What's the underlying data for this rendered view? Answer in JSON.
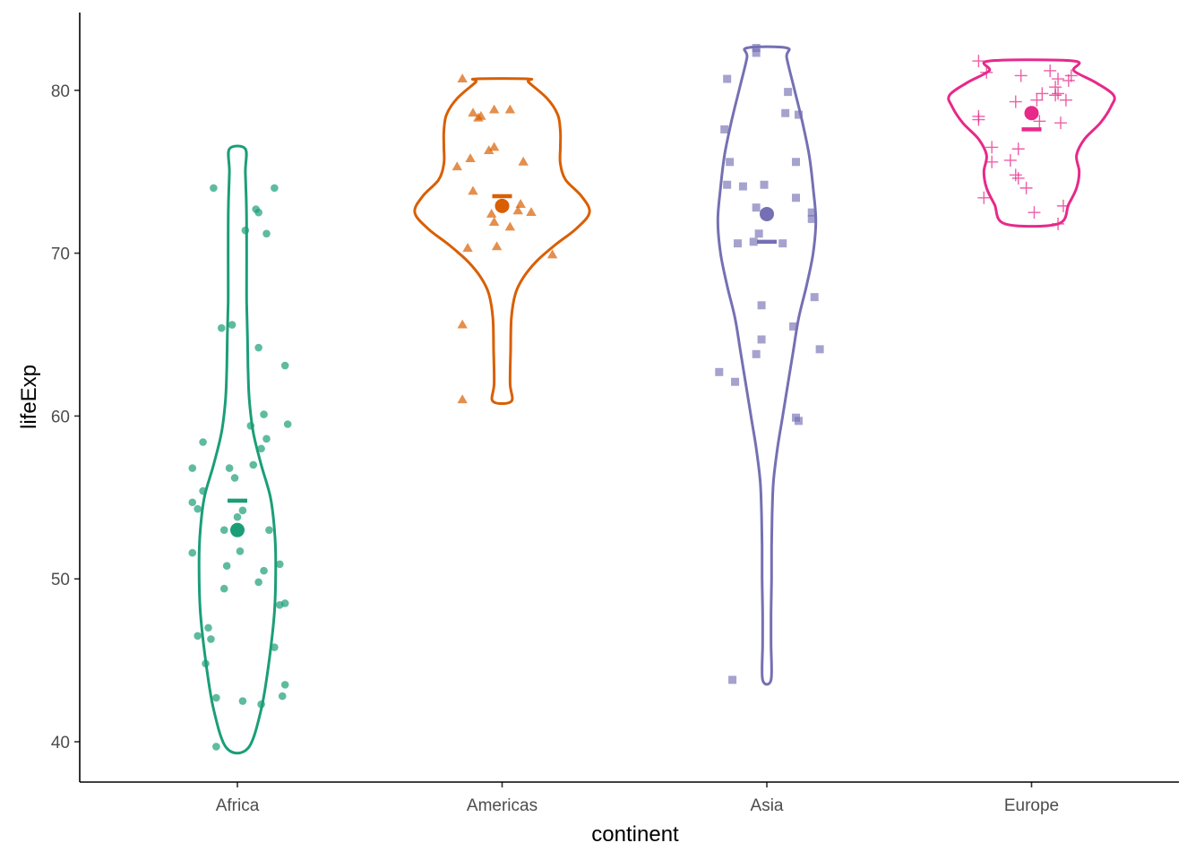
{
  "chart_data": {
    "type": "violin",
    "xlabel": "continent",
    "ylabel": "lifeExp",
    "ylim": [
      37.5,
      84.2
    ],
    "y_ticks": [
      40,
      50,
      60,
      70,
      80
    ],
    "grid": false,
    "legend": "none",
    "groups": [
      {
        "name": "Africa",
        "color": "#1b9e77",
        "shape": "circle",
        "mean": 53.0,
        "median": 54.8,
        "violin": [
          [
            39.6,
            0.04
          ],
          [
            42,
            0.09
          ],
          [
            45,
            0.12
          ],
          [
            48,
            0.14
          ],
          [
            51,
            0.145
          ],
          [
            53,
            0.14
          ],
          [
            55,
            0.125
          ],
          [
            57,
            0.09
          ],
          [
            59,
            0.06
          ],
          [
            61,
            0.045
          ],
          [
            63,
            0.04
          ],
          [
            65,
            0.038
          ],
          [
            67,
            0.035
          ],
          [
            69,
            0.035
          ],
          [
            71,
            0.035
          ],
          [
            73,
            0.034
          ],
          [
            75,
            0.03
          ],
          [
            76.4,
            0.03
          ]
        ],
        "points": [
          [
            -0.08,
            39.7
          ],
          [
            0.09,
            42.3
          ],
          [
            0.02,
            42.5
          ],
          [
            0.17,
            42.8
          ],
          [
            -0.08,
            42.7
          ],
          [
            0.14,
            45.8
          ],
          [
            0.18,
            43.5
          ],
          [
            0.16,
            48.4
          ],
          [
            0.18,
            48.5
          ],
          [
            -0.12,
            44.8
          ],
          [
            -0.15,
            46.5
          ],
          [
            -0.1,
            46.3
          ],
          [
            -0.11,
            47.0
          ],
          [
            0.08,
            49.8
          ],
          [
            0.1,
            50.5
          ],
          [
            0.16,
            50.9
          ],
          [
            -0.05,
            49.4
          ],
          [
            -0.04,
            50.8
          ],
          [
            0.01,
            51.7
          ],
          [
            -0.17,
            51.6
          ],
          [
            0.12,
            53.0
          ],
          [
            -0.05,
            53.0
          ],
          [
            0.0,
            53.8
          ],
          [
            0.02,
            54.2
          ],
          [
            -0.15,
            54.3
          ],
          [
            -0.17,
            54.7
          ],
          [
            -0.13,
            55.4
          ],
          [
            -0.01,
            56.2
          ],
          [
            0.06,
            57.0
          ],
          [
            -0.03,
            56.8
          ],
          [
            -0.17,
            56.8
          ],
          [
            0.09,
            58.0
          ],
          [
            0.11,
            58.6
          ],
          [
            -0.13,
            58.4
          ],
          [
            0.05,
            59.4
          ],
          [
            0.19,
            59.5
          ],
          [
            0.1,
            60.1
          ],
          [
            0.18,
            63.1
          ],
          [
            0.08,
            64.2
          ],
          [
            -0.06,
            65.4
          ],
          [
            -0.02,
            65.6
          ],
          [
            0.03,
            71.4
          ],
          [
            0.11,
            71.2
          ],
          [
            0.08,
            72.5
          ],
          [
            0.07,
            72.7
          ],
          [
            -0.09,
            74.0
          ],
          [
            0.14,
            74.0
          ]
        ]
      },
      {
        "name": "Americas",
        "color": "#d95f02",
        "shape": "triangle",
        "mean": 72.9,
        "median": 73.5,
        "violin": [
          [
            60.9,
            0.035
          ],
          [
            62,
            0.03
          ],
          [
            64,
            0.032
          ],
          [
            66,
            0.035
          ],
          [
            67.5,
            0.05
          ],
          [
            68.5,
            0.08
          ],
          [
            69.5,
            0.13
          ],
          [
            70.5,
            0.2
          ],
          [
            71.5,
            0.28
          ],
          [
            72.5,
            0.33
          ],
          [
            73.5,
            0.3
          ],
          [
            74.5,
            0.24
          ],
          [
            75.5,
            0.22
          ],
          [
            76.5,
            0.22
          ],
          [
            77.5,
            0.22
          ],
          [
            78.5,
            0.21
          ],
          [
            79.5,
            0.17
          ],
          [
            80.5,
            0.1
          ],
          [
            80.7,
            0.1
          ]
        ],
        "points": [
          [
            -0.15,
            61.0
          ],
          [
            -0.15,
            65.6
          ],
          [
            0.19,
            69.9
          ],
          [
            -0.13,
            70.3
          ],
          [
            -0.02,
            70.4
          ],
          [
            0.03,
            71.6
          ],
          [
            -0.03,
            71.9
          ],
          [
            0.06,
            72.6
          ],
          [
            -0.04,
            72.4
          ],
          [
            0.11,
            72.5
          ],
          [
            0.07,
            73.0
          ],
          [
            -0.11,
            73.8
          ],
          [
            0.08,
            75.6
          ],
          [
            -0.17,
            75.3
          ],
          [
            -0.12,
            75.8
          ],
          [
            -0.05,
            76.3
          ],
          [
            -0.03,
            76.5
          ],
          [
            -0.08,
            78.4
          ],
          [
            -0.09,
            78.3
          ],
          [
            -0.11,
            78.6
          ],
          [
            -0.03,
            78.8
          ],
          [
            0.03,
            78.8
          ],
          [
            -0.15,
            80.7
          ]
        ]
      },
      {
        "name": "Asia",
        "color": "#7570b3",
        "shape": "square",
        "mean": 72.4,
        "median": 70.7,
        "violin": [
          [
            43.8,
            0.016
          ],
          [
            46,
            0.016
          ],
          [
            48,
            0.016
          ],
          [
            50,
            0.018
          ],
          [
            52,
            0.018
          ],
          [
            54,
            0.02
          ],
          [
            56,
            0.025
          ],
          [
            58,
            0.04
          ],
          [
            60,
            0.06
          ],
          [
            62,
            0.08
          ],
          [
            64,
            0.1
          ],
          [
            66,
            0.12
          ],
          [
            68,
            0.15
          ],
          [
            70,
            0.175
          ],
          [
            72,
            0.185
          ],
          [
            74,
            0.175
          ],
          [
            76,
            0.16
          ],
          [
            78,
            0.135
          ],
          [
            80,
            0.105
          ],
          [
            82,
            0.075
          ],
          [
            82.6,
            0.075
          ]
        ],
        "points": [
          [
            -0.13,
            43.8
          ],
          [
            -0.12,
            62.1
          ],
          [
            -0.18,
            62.7
          ],
          [
            -0.04,
            63.8
          ],
          [
            -0.02,
            64.7
          ],
          [
            0.12,
            59.7
          ],
          [
            0.11,
            59.9
          ],
          [
            0.2,
            64.1
          ],
          [
            0.1,
            65.5
          ],
          [
            0.18,
            67.3
          ],
          [
            -0.02,
            66.8
          ],
          [
            -0.11,
            70.6
          ],
          [
            -0.05,
            70.7
          ],
          [
            0.06,
            70.6
          ],
          [
            -0.04,
            72.8
          ],
          [
            -0.03,
            71.2
          ],
          [
            0.17,
            72.1
          ],
          [
            0.17,
            72.5
          ],
          [
            0.11,
            73.4
          ],
          [
            -0.15,
            74.2
          ],
          [
            -0.09,
            74.1
          ],
          [
            -0.14,
            75.6
          ],
          [
            -0.01,
            74.2
          ],
          [
            0.11,
            75.6
          ],
          [
            -0.16,
            77.6
          ],
          [
            0.07,
            78.6
          ],
          [
            0.12,
            78.5
          ],
          [
            0.08,
            79.9
          ],
          [
            -0.15,
            80.7
          ],
          [
            -0.04,
            82.3
          ],
          [
            -0.04,
            82.6
          ]
        ]
      },
      {
        "name": "Europe",
        "color": "#e7298a",
        "shape": "plus",
        "mean": 78.6,
        "median": 77.6,
        "violin": [
          [
            71.8,
            0.1
          ],
          [
            73,
            0.14
          ],
          [
            74,
            0.17
          ],
          [
            75,
            0.18
          ],
          [
            76,
            0.17
          ],
          [
            77,
            0.2
          ],
          [
            78,
            0.26
          ],
          [
            79,
            0.3
          ],
          [
            79.7,
            0.31
          ],
          [
            80.5,
            0.24
          ],
          [
            81.2,
            0.16
          ],
          [
            81.8,
            0.16
          ]
        ],
        "points": [
          [
            -0.2,
            81.8
          ],
          [
            -0.17,
            81.1
          ],
          [
            0.07,
            81.2
          ],
          [
            -0.04,
            80.9
          ],
          [
            0.15,
            80.9
          ],
          [
            0.09,
            80.2
          ],
          [
            0.14,
            80.6
          ],
          [
            0.1,
            80.7
          ],
          [
            0.04,
            79.8
          ],
          [
            0.09,
            79.7
          ],
          [
            -0.06,
            79.3
          ],
          [
            0.13,
            79.4
          ],
          [
            0.1,
            79.8
          ],
          [
            0.02,
            79.4
          ],
          [
            0.03,
            78.1
          ],
          [
            -0.2,
            78.2
          ],
          [
            -0.2,
            78.4
          ],
          [
            0.11,
            78.0
          ],
          [
            -0.15,
            76.5
          ],
          [
            -0.05,
            76.4
          ],
          [
            -0.15,
            75.6
          ],
          [
            -0.08,
            75.7
          ],
          [
            -0.06,
            74.8
          ],
          [
            -0.05,
            74.6
          ],
          [
            -0.02,
            74.0
          ],
          [
            -0.18,
            73.4
          ],
          [
            0.12,
            72.9
          ],
          [
            0.01,
            72.5
          ],
          [
            0.1,
            71.8
          ]
        ]
      }
    ]
  }
}
